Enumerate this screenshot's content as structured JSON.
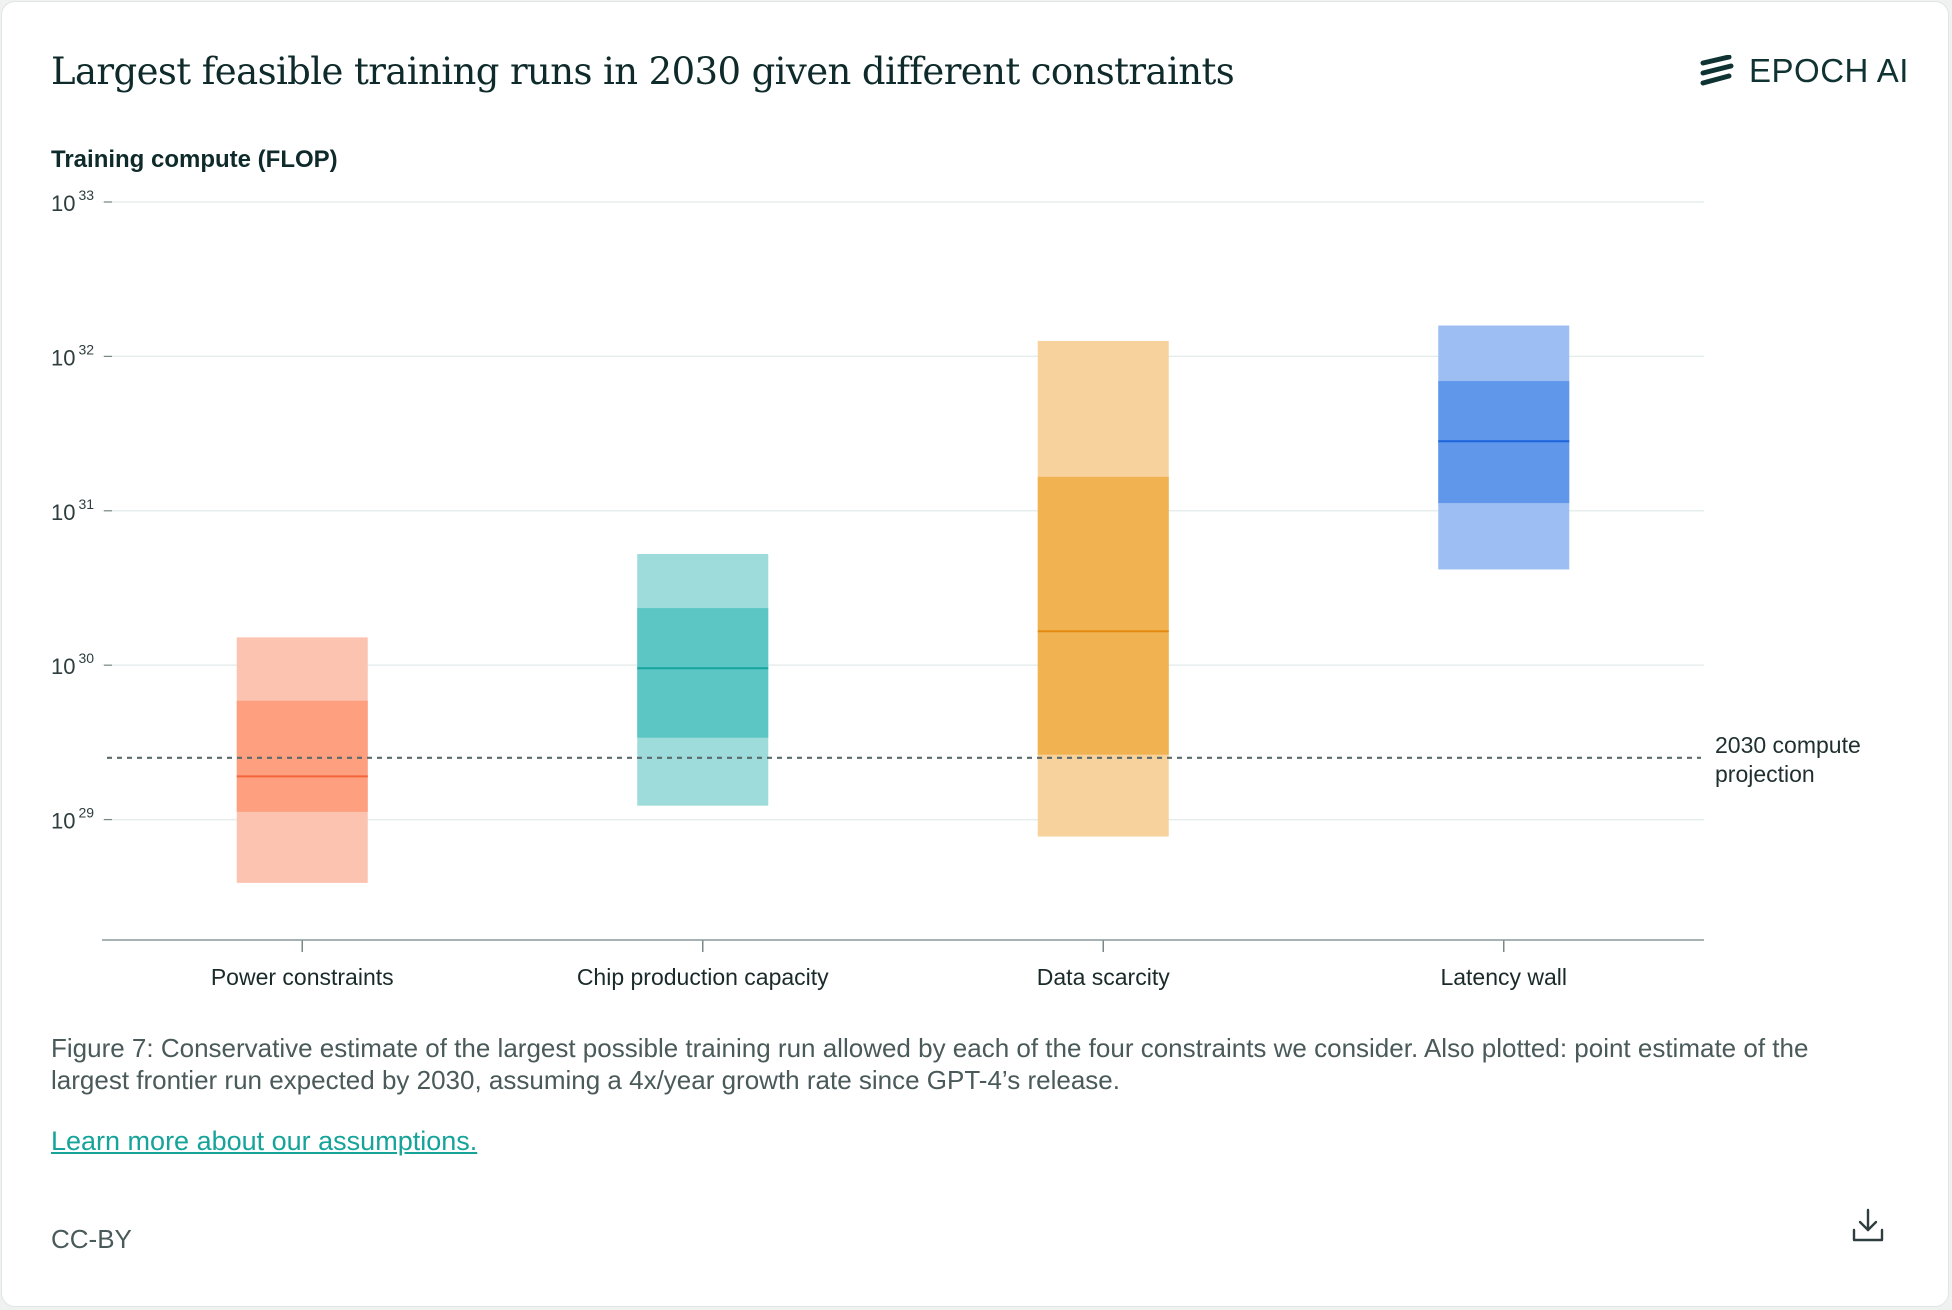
{
  "header": {
    "title": "Largest feasible training runs in 2030 given different constraints",
    "logo_text": "EPOCH AI"
  },
  "chart_data": {
    "type": "bar",
    "title": "Largest feasible training runs in 2030 given different constraints",
    "ylabel": "Training compute (FLOP)",
    "xlabel": "",
    "yscale": "log",
    "ylim_exponent": [
      28.22,
      33
    ],
    "yticks": [
      {
        "base": "10",
        "exp": "29",
        "value_exponent": 29
      },
      {
        "base": "10",
        "exp": "30",
        "value_exponent": 30
      },
      {
        "base": "10",
        "exp": "31",
        "value_exponent": 31
      },
      {
        "base": "10",
        "exp": "32",
        "value_exponent": 32
      },
      {
        "base": "10",
        "exp": "33",
        "value_exponent": 33
      }
    ],
    "grid": true,
    "categories": [
      "Power constraints",
      "Chip production capacity",
      "Data scarcity",
      "Latency wall"
    ],
    "series": [
      {
        "category": "Power constraints",
        "outer_low_exp": 28.59,
        "inner_low_exp": 29.05,
        "median_exp": 29.28,
        "inner_high_exp": 29.77,
        "outer_high_exp": 30.18,
        "colors": {
          "outer": "#fcc3b0",
          "inner": "#fe9f80",
          "median": "#f2643c"
        }
      },
      {
        "category": "Chip production capacity",
        "outer_low_exp": 29.09,
        "inner_low_exp": 29.53,
        "median_exp": 29.98,
        "inner_high_exp": 30.37,
        "outer_high_exp": 30.72,
        "colors": {
          "outer": "#9ddcda",
          "inner": "#5cc6c4",
          "median": "#16a49d"
        }
      },
      {
        "category": "Data scarcity",
        "outer_low_exp": 28.89,
        "inner_low_exp": 29.42,
        "median_exp": 30.22,
        "inner_high_exp": 31.22,
        "outer_high_exp": 32.1,
        "colors": {
          "outer": "#f7d29c",
          "inner": "#f1b352",
          "median": "#e58a10"
        }
      },
      {
        "category": "Latency wall",
        "outer_low_exp": 30.62,
        "inner_low_exp": 31.05,
        "median_exp": 31.45,
        "inner_high_exp": 31.84,
        "outer_high_exp": 32.2,
        "colors": {
          "outer": "#9dbef3",
          "inner": "#6097eb",
          "median": "#1b64da"
        }
      }
    ],
    "reference_line": {
      "value_exponent": 29.4,
      "label_lines": [
        "2030 compute",
        "projection"
      ],
      "color": "#5a6a6a"
    }
  },
  "caption": "Figure 7: Conservative estimate of the largest possible training run allowed by each of the four constraints we consider. Also plotted: point estimate of the largest frontier run expected by 2030, assuming a 4x/year growth rate since GPT-4’s release.",
  "link_text": "Learn more about our assumptions.",
  "license": "CC-BY",
  "icons": {
    "logo": "epoch-logo-icon",
    "download": "download-icon"
  }
}
